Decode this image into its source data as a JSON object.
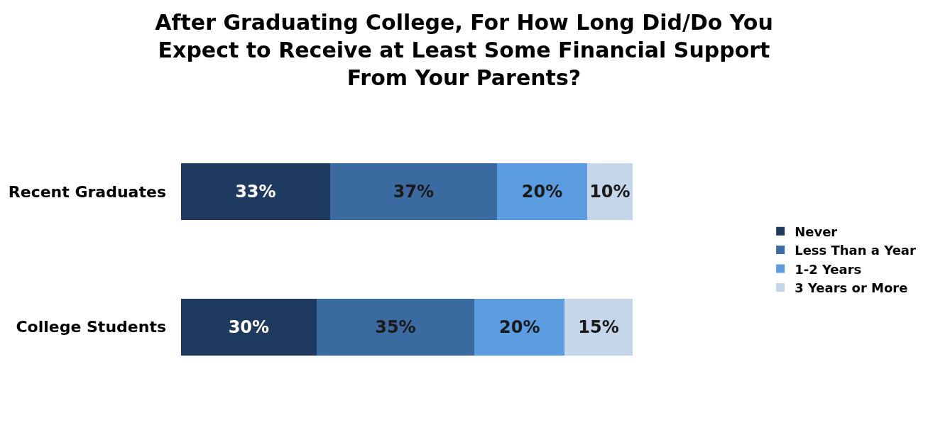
{
  "chart_data": {
    "type": "bar",
    "orientation": "horizontal",
    "stacked": true,
    "title": "After Graduating College, For How Long Did/Do You\nExpect to Receive at Least Some Financial Support\nFrom Your Parents?",
    "categories": [
      "Recent Graduates",
      "College Students"
    ],
    "series": [
      {
        "name": "Never",
        "color": "#1f3a5f",
        "values": [
          33,
          30
        ],
        "value_labels": [
          "33%",
          "30%"
        ]
      },
      {
        "name": "Less Than a Year",
        "color": "#3a6aa0",
        "values": [
          37,
          35
        ],
        "value_labels": [
          "37%",
          "35%"
        ]
      },
      {
        "name": "1-2 Years",
        "color": "#5b9de0",
        "values": [
          20,
          20
        ],
        "value_labels": [
          "20%",
          "20%"
        ]
      },
      {
        "name": "3 Years or More",
        "color": "#c5d5ea",
        "values": [
          10,
          15
        ],
        "value_labels": [
          "10%",
          "15%"
        ]
      }
    ],
    "legend": "right",
    "grid": false
  }
}
